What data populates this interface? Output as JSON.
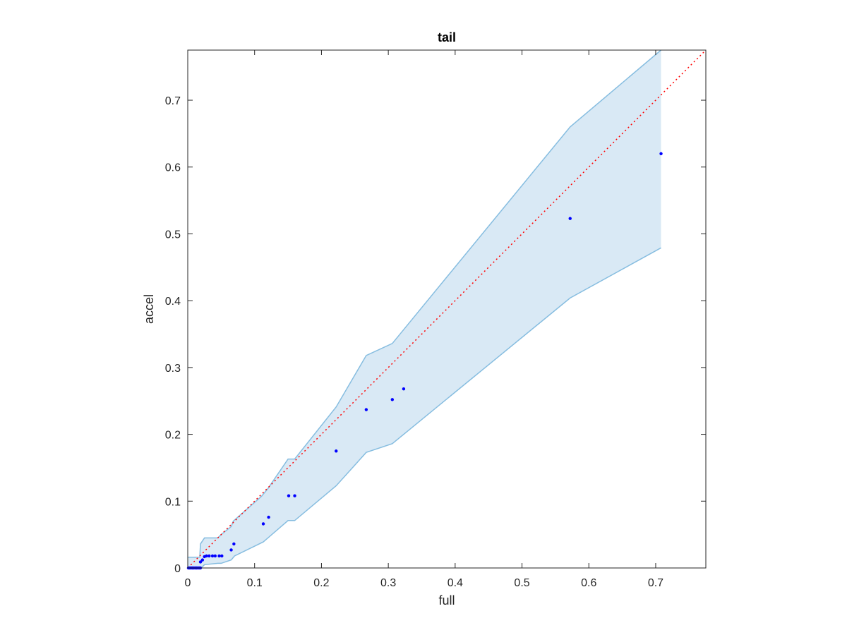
{
  "chart_data": {
    "type": "scatter",
    "title": "tail",
    "xlabel": "full",
    "ylabel": "accel",
    "xlim": [
      0,
      0.775
    ],
    "ylim": [
      0,
      0.775
    ],
    "xticks": [
      0,
      0.1,
      0.2,
      0.3,
      0.4,
      0.5,
      0.6,
      0.7
    ],
    "yticks": [
      0,
      0.1,
      0.2,
      0.3,
      0.4,
      0.5,
      0.6,
      0.7
    ],
    "xtick_labels": [
      "0",
      "0.1",
      "0.2",
      "0.3",
      "0.4",
      "0.5",
      "0.6",
      "0.7"
    ],
    "ytick_labels": [
      "0",
      "0.1",
      "0.2",
      "0.3",
      "0.4",
      "0.5",
      "0.6",
      "0.7"
    ],
    "grid": false,
    "colors": {
      "points": "#0000ff",
      "band_fill": "#d9e9f5",
      "band_edge": "#86bde0",
      "reference_line": "#ff0000",
      "axes": "#262626"
    },
    "points": [
      {
        "x": 0.001,
        "y": 0.0
      },
      {
        "x": 0.003,
        "y": 0.0
      },
      {
        "x": 0.005,
        "y": 0.0
      },
      {
        "x": 0.007,
        "y": 0.0
      },
      {
        "x": 0.009,
        "y": 0.0
      },
      {
        "x": 0.011,
        "y": 0.0
      },
      {
        "x": 0.013,
        "y": 0.0
      },
      {
        "x": 0.015,
        "y": 0.0
      },
      {
        "x": 0.017,
        "y": 0.0
      },
      {
        "x": 0.019,
        "y": 0.0
      },
      {
        "x": 0.019,
        "y": 0.009
      },
      {
        "x": 0.022,
        "y": 0.012
      },
      {
        "x": 0.025,
        "y": 0.017
      },
      {
        "x": 0.028,
        "y": 0.018
      },
      {
        "x": 0.032,
        "y": 0.018
      },
      {
        "x": 0.037,
        "y": 0.018
      },
      {
        "x": 0.041,
        "y": 0.018
      },
      {
        "x": 0.047,
        "y": 0.018
      },
      {
        "x": 0.051,
        "y": 0.018
      },
      {
        "x": 0.065,
        "y": 0.027
      },
      {
        "x": 0.069,
        "y": 0.036
      },
      {
        "x": 0.113,
        "y": 0.066
      },
      {
        "x": 0.121,
        "y": 0.076
      },
      {
        "x": 0.151,
        "y": 0.108
      },
      {
        "x": 0.16,
        "y": 0.108
      },
      {
        "x": 0.222,
        "y": 0.175
      },
      {
        "x": 0.267,
        "y": 0.237
      },
      {
        "x": 0.306,
        "y": 0.252
      },
      {
        "x": 0.323,
        "y": 0.268
      },
      {
        "x": 0.572,
        "y": 0.523
      },
      {
        "x": 0.708,
        "y": 0.62
      }
    ],
    "band_upper": [
      {
        "x": 0.0,
        "y": 0.016
      },
      {
        "x": 0.018,
        "y": 0.016
      },
      {
        "x": 0.019,
        "y": 0.036
      },
      {
        "x": 0.025,
        "y": 0.045
      },
      {
        "x": 0.045,
        "y": 0.045
      },
      {
        "x": 0.05,
        "y": 0.05
      },
      {
        "x": 0.065,
        "y": 0.062
      },
      {
        "x": 0.068,
        "y": 0.07
      },
      {
        "x": 0.11,
        "y": 0.107
      },
      {
        "x": 0.12,
        "y": 0.119
      },
      {
        "x": 0.15,
        "y": 0.163
      },
      {
        "x": 0.16,
        "y": 0.163
      },
      {
        "x": 0.222,
        "y": 0.241
      },
      {
        "x": 0.267,
        "y": 0.318
      },
      {
        "x": 0.306,
        "y": 0.336
      },
      {
        "x": 0.572,
        "y": 0.66
      },
      {
        "x": 0.708,
        "y": 0.78
      }
    ],
    "band_lower": [
      {
        "x": 0.0,
        "y": 0.0
      },
      {
        "x": 0.02,
        "y": 0.0
      },
      {
        "x": 0.025,
        "y": 0.005
      },
      {
        "x": 0.045,
        "y": 0.007
      },
      {
        "x": 0.05,
        "y": 0.007
      },
      {
        "x": 0.065,
        "y": 0.012
      },
      {
        "x": 0.07,
        "y": 0.018
      },
      {
        "x": 0.113,
        "y": 0.039
      },
      {
        "x": 0.15,
        "y": 0.071
      },
      {
        "x": 0.16,
        "y": 0.071
      },
      {
        "x": 0.222,
        "y": 0.123
      },
      {
        "x": 0.267,
        "y": 0.173
      },
      {
        "x": 0.306,
        "y": 0.186
      },
      {
        "x": 0.572,
        "y": 0.404
      },
      {
        "x": 0.708,
        "y": 0.479
      }
    ],
    "reference_line": {
      "style": "dotted",
      "from": [
        0,
        0
      ],
      "to": [
        0.775,
        0.775
      ]
    }
  }
}
